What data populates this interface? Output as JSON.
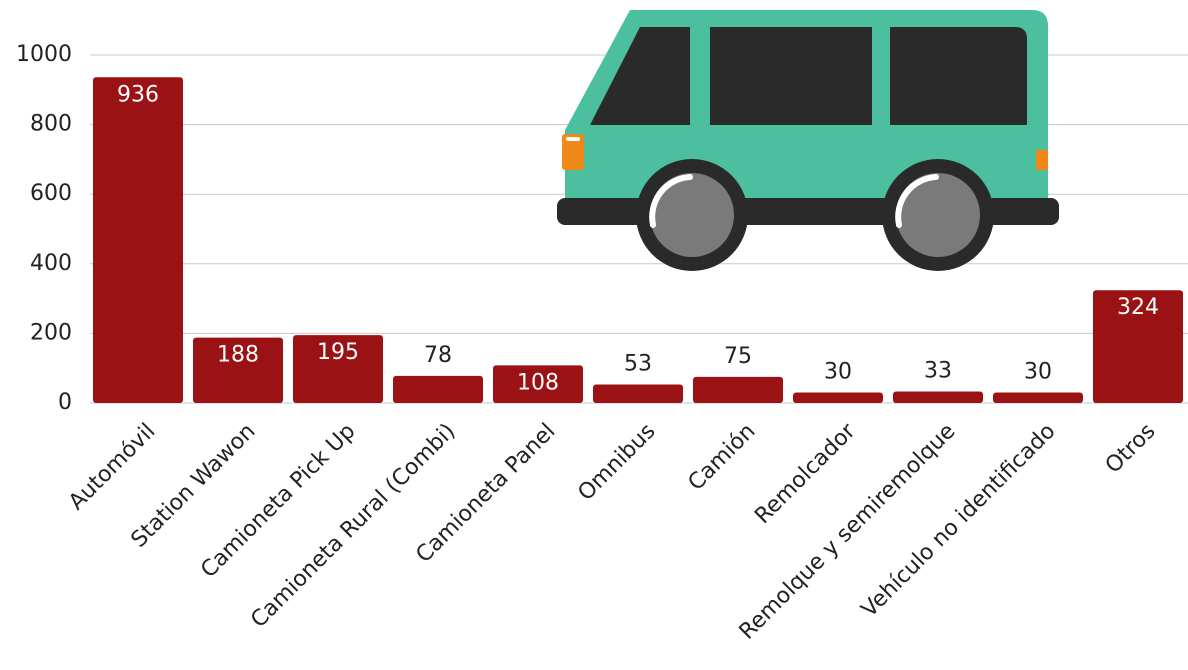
{
  "chart_data": {
    "type": "bar",
    "categories": [
      "Automóvil",
      "Station Wawon",
      "Camioneta Pick Up",
      "Camioneta Rural (Combi)",
      "Camioneta Panel",
      "Omnibus",
      "Camión",
      "Remolcador",
      "Remolque y semiremolque",
      "Vehículo no identificado",
      "Otros"
    ],
    "values": [
      936,
      188,
      195,
      78,
      108,
      53,
      75,
      30,
      33,
      30,
      324
    ],
    "color": "#9b1214",
    "ylim": [
      0,
      1000
    ],
    "yticks": [
      0,
      200,
      400,
      600,
      800,
      1000
    ],
    "grid": true
  }
}
